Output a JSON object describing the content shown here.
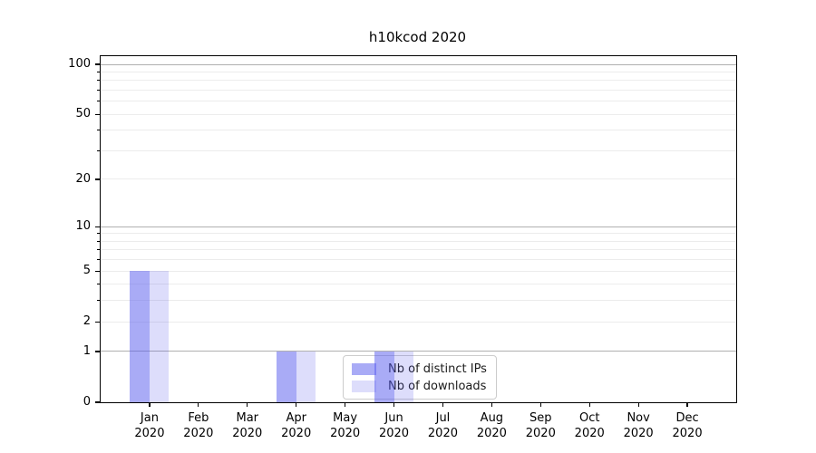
{
  "chart_data": {
    "type": "bar",
    "title": "h10kcod 2020",
    "xlabel": "",
    "ylabel": "",
    "categories": [
      "Jan",
      "Feb",
      "Mar",
      "Apr",
      "May",
      "Jun",
      "Jul",
      "Aug",
      "Sep",
      "Oct",
      "Nov",
      "Dec"
    ],
    "category_year": "2020",
    "series": [
      {
        "name": "Nb of distinct IPs",
        "color": "rgba(83,87,237,0.5)",
        "values": [
          5,
          0,
          0,
          1,
          0,
          1,
          0,
          0,
          0,
          0,
          0,
          0
        ]
      },
      {
        "name": "Nb of downloads",
        "color": "rgba(83,87,237,0.2)",
        "values": [
          5,
          0,
          0,
          1,
          0,
          1,
          0,
          0,
          0,
          0,
          0,
          0
        ]
      }
    ],
    "yscale": "log1p",
    "ylim": [
      0,
      112
    ],
    "yticks": [
      0,
      1,
      2,
      5,
      10,
      20,
      50,
      100
    ],
    "major_gridlines": [
      1,
      10,
      100
    ],
    "minor_gridlines": [
      2,
      3,
      4,
      5,
      6,
      7,
      8,
      9,
      20,
      30,
      40,
      50,
      60,
      70,
      80,
      90
    ],
    "grid": true,
    "legend_position": "lower center inside plot",
    "colors": {
      "bar_distinct_ips": "rgba(83,87,237,0.5)",
      "bar_downloads": "rgba(83,87,237,0.2)",
      "major_grid": "#b0b0b0",
      "minor_grid": "#ececec",
      "axis": "#000000"
    }
  }
}
